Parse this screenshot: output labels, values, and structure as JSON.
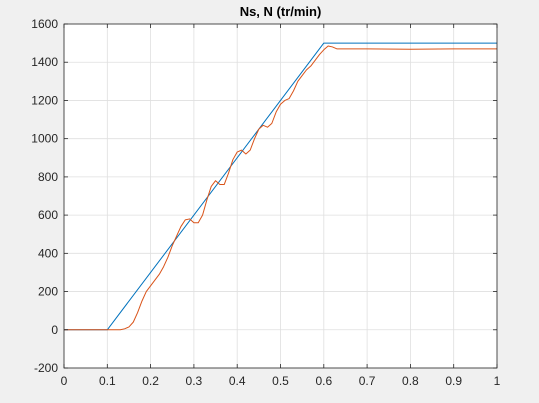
{
  "chart_data": {
    "type": "line",
    "title": "Ns, N (tr/min)",
    "xlabel": "",
    "ylabel": "",
    "xlim": [
      0,
      1
    ],
    "ylim": [
      -200,
      1600
    ],
    "xticks": [
      0,
      0.1,
      0.2,
      0.3,
      0.4,
      0.5,
      0.6,
      0.7,
      0.8,
      0.9,
      1
    ],
    "xtick_labels": [
      "0",
      "0.1",
      "0.2",
      "0.3",
      "0.4",
      "0.5",
      "0.6",
      "0.7",
      "0.8",
      "0.9",
      "1"
    ],
    "yticks": [
      -200,
      0,
      200,
      400,
      600,
      800,
      1000,
      1200,
      1400,
      1600
    ],
    "ytick_labels": [
      "-200",
      "0",
      "200",
      "400",
      "600",
      "800",
      "1000",
      "1200",
      "1400",
      "1600"
    ],
    "grid": true,
    "series": [
      {
        "color": "#0072bd",
        "x": [
          0,
          0.1,
          0.6,
          1
        ],
        "y": [
          0,
          0,
          1500,
          1500
        ]
      },
      {
        "color": "#d95319",
        "x": [
          0,
          0.13,
          0.14,
          0.15,
          0.16,
          0.17,
          0.18,
          0.19,
          0.2,
          0.21,
          0.22,
          0.23,
          0.24,
          0.25,
          0.26,
          0.27,
          0.28,
          0.29,
          0.3,
          0.31,
          0.32,
          0.33,
          0.34,
          0.35,
          0.36,
          0.37,
          0.38,
          0.39,
          0.4,
          0.41,
          0.42,
          0.43,
          0.44,
          0.45,
          0.46,
          0.47,
          0.48,
          0.49,
          0.5,
          0.51,
          0.52,
          0.53,
          0.54,
          0.55,
          0.56,
          0.57,
          0.58,
          0.59,
          0.6,
          0.61,
          0.62,
          0.63,
          0.65,
          0.7,
          0.8,
          0.9,
          1
        ],
        "y": [
          0,
          0,
          5,
          15,
          40,
          90,
          150,
          200,
          230,
          260,
          290,
          330,
          380,
          440,
          490,
          540,
          575,
          580,
          560,
          560,
          600,
          680,
          750,
          780,
          760,
          760,
          820,
          890,
          930,
          940,
          920,
          940,
          1000,
          1050,
          1070,
          1060,
          1080,
          1140,
          1180,
          1200,
          1210,
          1250,
          1300,
          1330,
          1360,
          1380,
          1410,
          1440,
          1465,
          1485,
          1480,
          1470,
          1470,
          1470,
          1468,
          1470,
          1470
        ]
      }
    ]
  }
}
